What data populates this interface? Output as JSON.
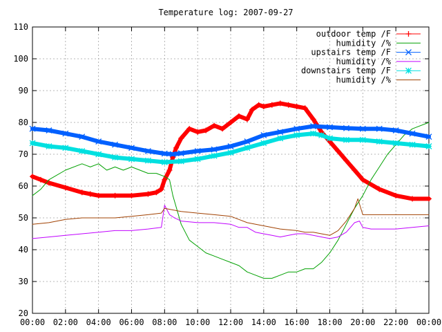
{
  "chart_data": {
    "type": "line",
    "title": "Temperature log: 2007-09-27",
    "xlabel": "",
    "ylabel": "",
    "xlim": [
      "00:00",
      "24:00"
    ],
    "ylim": [
      20,
      110
    ],
    "grid": true,
    "legend_position": "top-right",
    "x_ticks": [
      "00:00",
      "02:00",
      "04:00",
      "06:00",
      "08:00",
      "10:00",
      "12:00",
      "14:00",
      "16:00",
      "18:00",
      "20:00",
      "22:00",
      "00:00"
    ],
    "y_ticks": [
      "20",
      "30",
      "40",
      "50",
      "60",
      "70",
      "80",
      "90",
      "100",
      "110"
    ],
    "x_unit": "hours",
    "series": [
      {
        "name": "outdoor temp /F",
        "color": "#ff0000",
        "marker": "plus",
        "points": [
          [
            0,
            63
          ],
          [
            0.5,
            62
          ],
          [
            1,
            61
          ],
          [
            2,
            59.5
          ],
          [
            3,
            58
          ],
          [
            3.5,
            57.5
          ],
          [
            4,
            57
          ],
          [
            5,
            57
          ],
          [
            6,
            57
          ],
          [
            7,
            57.5
          ],
          [
            7.5,
            58
          ],
          [
            7.8,
            59
          ],
          [
            8,
            62
          ],
          [
            8.3,
            65
          ],
          [
            8.5,
            69
          ],
          [
            8.7,
            72
          ],
          [
            9,
            75
          ],
          [
            9.5,
            78
          ],
          [
            10,
            77
          ],
          [
            10.5,
            77.5
          ],
          [
            11,
            79
          ],
          [
            11.5,
            78
          ],
          [
            12,
            80
          ],
          [
            12.5,
            82
          ],
          [
            13,
            81
          ],
          [
            13.3,
            84
          ],
          [
            13.7,
            85.5
          ],
          [
            14,
            85
          ],
          [
            14.5,
            85.5
          ],
          [
            15,
            86
          ],
          [
            15.5,
            85.5
          ],
          [
            16,
            85
          ],
          [
            16.5,
            84.5
          ],
          [
            17,
            81
          ],
          [
            17.5,
            77
          ],
          [
            18,
            74
          ],
          [
            18.5,
            71
          ],
          [
            19,
            68
          ],
          [
            19.5,
            65
          ],
          [
            20,
            62
          ],
          [
            21,
            59
          ],
          [
            22,
            57
          ],
          [
            23,
            56
          ],
          [
            24,
            56
          ]
        ]
      },
      {
        "name": "humidity /%",
        "color": "#00a000",
        "marker": "none",
        "points": [
          [
            0,
            57
          ],
          [
            0.5,
            59
          ],
          [
            1,
            62
          ],
          [
            2,
            65
          ],
          [
            3,
            67
          ],
          [
            3.5,
            66
          ],
          [
            4,
            67
          ],
          [
            4.5,
            65
          ],
          [
            5,
            66
          ],
          [
            5.5,
            65
          ],
          [
            6,
            66
          ],
          [
            6.5,
            65
          ],
          [
            7,
            64
          ],
          [
            7.5,
            64
          ],
          [
            8,
            63
          ],
          [
            8.3,
            62
          ],
          [
            8.5,
            57
          ],
          [
            9,
            48
          ],
          [
            9.5,
            43
          ],
          [
            10,
            41
          ],
          [
            10.5,
            39
          ],
          [
            11,
            38
          ],
          [
            11.5,
            37
          ],
          [
            12,
            36
          ],
          [
            12.5,
            35
          ],
          [
            13,
            33
          ],
          [
            13.5,
            32
          ],
          [
            14,
            31
          ],
          [
            14.5,
            31
          ],
          [
            15,
            32
          ],
          [
            15.5,
            33
          ],
          [
            16,
            33
          ],
          [
            16.5,
            34
          ],
          [
            17,
            34
          ],
          [
            17.5,
            36
          ],
          [
            18,
            39
          ],
          [
            18.5,
            43
          ],
          [
            19,
            48
          ],
          [
            19.5,
            53
          ],
          [
            20,
            57
          ],
          [
            20.5,
            62
          ],
          [
            21,
            66
          ],
          [
            21.5,
            70
          ],
          [
            22,
            73
          ],
          [
            22.5,
            76
          ],
          [
            23,
            78
          ],
          [
            24,
            80
          ]
        ]
      },
      {
        "name": "upstairs temp /F",
        "color": "#0060ff",
        "marker": "cross",
        "points": [
          [
            0,
            78
          ],
          [
            1,
            77.5
          ],
          [
            2,
            76.5
          ],
          [
            3,
            75.5
          ],
          [
            4,
            74
          ],
          [
            5,
            73
          ],
          [
            6,
            72
          ],
          [
            7,
            71
          ],
          [
            8,
            70.2
          ],
          [
            8.5,
            70
          ],
          [
            9,
            70.3
          ],
          [
            10,
            71
          ],
          [
            11,
            71.5
          ],
          [
            12,
            72.5
          ],
          [
            13,
            74
          ],
          [
            14,
            76
          ],
          [
            15,
            77
          ],
          [
            16,
            78
          ],
          [
            17,
            78.8
          ],
          [
            18,
            78.5
          ],
          [
            19,
            78.2
          ],
          [
            20,
            78
          ],
          [
            21,
            78
          ],
          [
            22,
            77.5
          ],
          [
            23,
            76.5
          ],
          [
            24,
            75.5
          ]
        ]
      },
      {
        "name": "humidity /%",
        "color": "#c000ff",
        "marker": "none",
        "points": [
          [
            0,
            43.5
          ],
          [
            1,
            44
          ],
          [
            2,
            44.5
          ],
          [
            3,
            45
          ],
          [
            4,
            45.5
          ],
          [
            5,
            46
          ],
          [
            6,
            46
          ],
          [
            7,
            46.5
          ],
          [
            7.8,
            47
          ],
          [
            8,
            54
          ],
          [
            8.3,
            51
          ],
          [
            8.6,
            50
          ],
          [
            9,
            49
          ],
          [
            10,
            48.5
          ],
          [
            11,
            48.5
          ],
          [
            12,
            48
          ],
          [
            12.5,
            47
          ],
          [
            13,
            47
          ],
          [
            13.5,
            45.5
          ],
          [
            14,
            45
          ],
          [
            14.5,
            44.5
          ],
          [
            15,
            44
          ],
          [
            15.5,
            44.5
          ],
          [
            16,
            45
          ],
          [
            16.5,
            45
          ],
          [
            17,
            44.5
          ],
          [
            17.5,
            44
          ],
          [
            18,
            43.5
          ],
          [
            18.5,
            44
          ],
          [
            19,
            45.5
          ],
          [
            19.5,
            48.5
          ],
          [
            19.8,
            49
          ],
          [
            20,
            47
          ],
          [
            20.5,
            46.5
          ],
          [
            21,
            46.5
          ],
          [
            22,
            46.5
          ],
          [
            23,
            47
          ],
          [
            24,
            47.5
          ]
        ]
      },
      {
        "name": "downstairs temp /F",
        "color": "#00e0e0",
        "marker": "star",
        "points": [
          [
            0,
            73.5
          ],
          [
            1,
            72.5
          ],
          [
            2,
            72
          ],
          [
            3,
            71
          ],
          [
            4,
            70
          ],
          [
            5,
            69
          ],
          [
            6,
            68.5
          ],
          [
            7,
            68
          ],
          [
            8,
            67.5
          ],
          [
            9,
            67.8
          ],
          [
            10,
            68.5
          ],
          [
            11,
            69.5
          ],
          [
            12,
            70.5
          ],
          [
            13,
            72
          ],
          [
            14,
            73.5
          ],
          [
            15,
            75
          ],
          [
            16,
            76
          ],
          [
            17,
            76.5
          ],
          [
            17.5,
            76
          ],
          [
            18,
            75
          ],
          [
            19,
            74.5
          ],
          [
            20,
            74.5
          ],
          [
            21,
            74
          ],
          [
            22,
            73.5
          ],
          [
            23,
            73
          ],
          [
            24,
            72.5
          ]
        ]
      },
      {
        "name": "humidity /%",
        "color": "#a04000",
        "marker": "none",
        "points": [
          [
            0,
            48
          ],
          [
            1,
            48.5
          ],
          [
            2,
            49.5
          ],
          [
            3,
            50
          ],
          [
            4,
            50
          ],
          [
            5,
            50
          ],
          [
            6,
            50.5
          ],
          [
            7,
            51
          ],
          [
            7.8,
            51.5
          ],
          [
            8,
            53
          ],
          [
            8.5,
            52.5
          ],
          [
            9,
            52
          ],
          [
            10,
            51.5
          ],
          [
            11,
            51
          ],
          [
            12,
            50.5
          ],
          [
            12.5,
            49.5
          ],
          [
            13,
            48.5
          ],
          [
            14,
            47.5
          ],
          [
            15,
            46.5
          ],
          [
            16,
            46
          ],
          [
            16.5,
            45.5
          ],
          [
            17,
            45.5
          ],
          [
            17.5,
            45
          ],
          [
            18,
            44.5
          ],
          [
            18.5,
            46
          ],
          [
            19,
            49
          ],
          [
            19.5,
            53
          ],
          [
            19.7,
            56
          ],
          [
            20,
            51
          ],
          [
            21,
            51
          ],
          [
            22,
            51
          ],
          [
            23,
            51
          ],
          [
            24,
            51
          ]
        ]
      }
    ]
  }
}
